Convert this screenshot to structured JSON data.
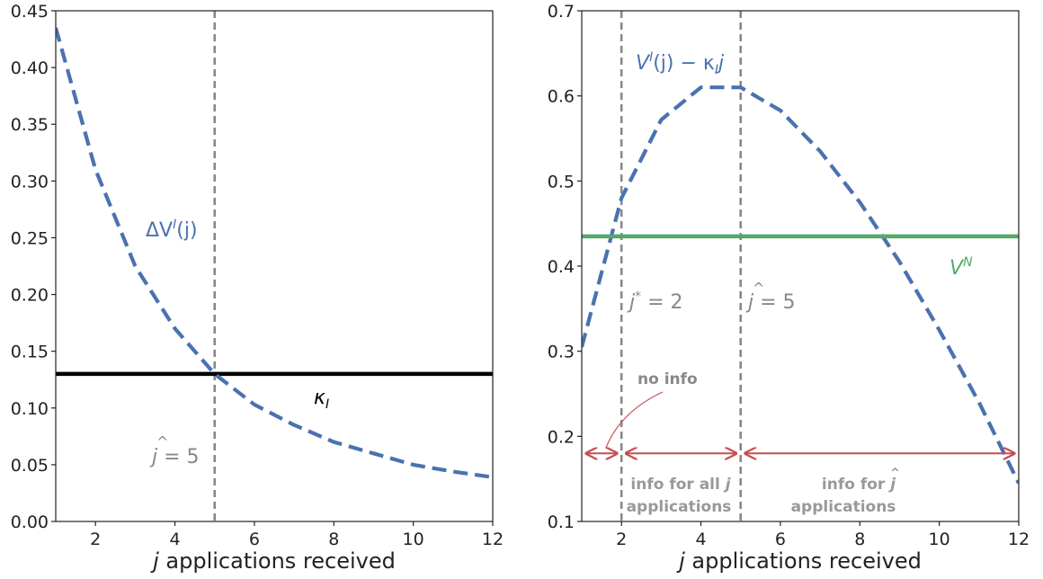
{
  "colors": {
    "blue": "#4a72b0",
    "black": "#000000",
    "grey": "#888888",
    "green": "#55a868",
    "red": "#c44e52",
    "axis": "#222222"
  },
  "chart_data": [
    {
      "type": "line",
      "title": "",
      "xlabel": {
        "var": "j",
        "text": " applications received"
      },
      "ylabel": "",
      "xlim": [
        1,
        12
      ],
      "ylim": [
        0,
        0.45
      ],
      "xticks": [
        2,
        4,
        6,
        8,
        10,
        12
      ],
      "yticks": [
        0.0,
        0.05,
        0.1,
        0.15,
        0.2,
        0.25,
        0.3,
        0.35,
        0.4,
        0.45
      ],
      "ytick_decimals": 2,
      "grid": false,
      "series": [
        {
          "name": "ΔV^I(j)",
          "style": "dashed",
          "color": "#4a72b0",
          "x": [
            1,
            2,
            3,
            4,
            5,
            6,
            7,
            8,
            9,
            10,
            11,
            12
          ],
          "y": [
            0.435,
            0.31,
            0.225,
            0.17,
            0.13,
            0.103,
            0.085,
            0.07,
            0.06,
            0.05,
            0.044,
            0.039
          ]
        }
      ],
      "hlines": [
        {
          "y": 0.13,
          "color": "#000000",
          "style": "solid",
          "label": "κ_I"
        }
      ],
      "vlines": [
        {
          "x": 5,
          "color": "#888888",
          "style": "dashed",
          "label": "ĵ = 5"
        }
      ],
      "annotations": {
        "series_label": {
          "base": "ΔV",
          "sup": "I",
          "tail": "(j)"
        },
        "kappa_label": {
          "base": "κ",
          "sub": "I"
        },
        "jhat_label": {
          "var": "j",
          "hat": "^",
          "rest": " = 5"
        }
      }
    },
    {
      "type": "line",
      "title": "",
      "xlabel": {
        "var": "j",
        "text": " applications received"
      },
      "ylabel": "",
      "xlim": [
        1,
        12
      ],
      "ylim": [
        0.1,
        0.7
      ],
      "xticks": [
        2,
        4,
        6,
        8,
        10,
        12
      ],
      "yticks": [
        0.1,
        0.2,
        0.3,
        0.4,
        0.5,
        0.6,
        0.7
      ],
      "ytick_decimals": 1,
      "grid": false,
      "series": [
        {
          "name": "V^I(j) − κ_I j",
          "style": "dashed",
          "color": "#4a72b0",
          "x": [
            1,
            2,
            3,
            4,
            5,
            6,
            7,
            8,
            9,
            10,
            11,
            12
          ],
          "y": [
            0.305,
            0.48,
            0.572,
            0.61,
            0.61,
            0.583,
            0.535,
            0.475,
            0.405,
            0.325,
            0.24,
            0.145
          ]
        },
        {
          "name": "V^N",
          "style": "solid",
          "color": "#55a868",
          "x": [
            1,
            12
          ],
          "y": [
            0.435,
            0.435
          ]
        }
      ],
      "vlines": [
        {
          "x": 2,
          "color": "#888888",
          "style": "dashed",
          "label": "j* = 2"
        },
        {
          "x": 5,
          "color": "#888888",
          "style": "dashed",
          "label": "ĵ = 5"
        }
      ],
      "annotations": {
        "series_label": {
          "base": "V",
          "sup": "I",
          "mid": "(j) − κ",
          "sub": "I",
          "tail": "j"
        },
        "vn_label": {
          "base": "V",
          "sup": "N"
        },
        "jstar_label": {
          "var": "j",
          "sup": "*",
          "rest": " = 2"
        },
        "jhat_label": {
          "var": "j",
          "hat": "^",
          "rest": " = 5"
        },
        "no_info": "no info",
        "info_all": {
          "line1_prefix": "info for all ",
          "line1_var": "j",
          "line2": "applications"
        },
        "info_hat": {
          "line1_prefix": "info for ",
          "line1_var": "j",
          "line1_hat": "^",
          "line2": "applications"
        },
        "arrows_y": 0.18,
        "arrow_ranges": [
          [
            1,
            2
          ],
          [
            2,
            5
          ],
          [
            5,
            12
          ]
        ]
      }
    }
  ]
}
